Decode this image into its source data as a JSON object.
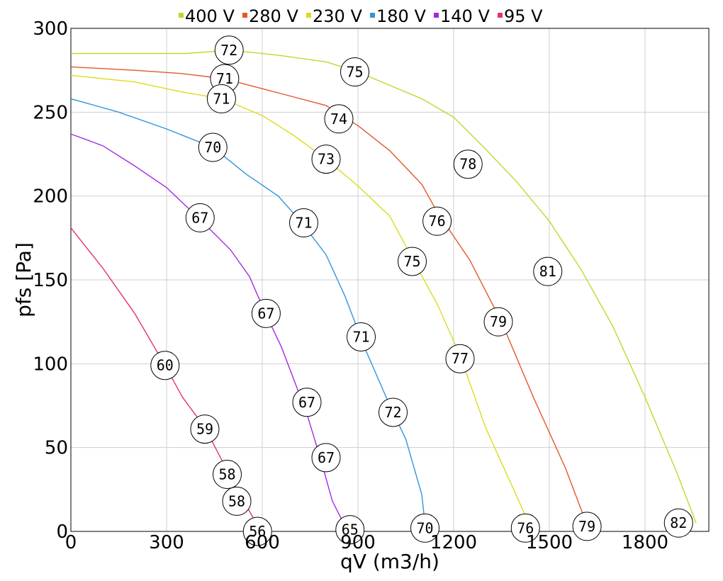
{
  "chart_data": {
    "type": "line",
    "xlabel": "qV (m3/h)",
    "ylabel": "pfs [Pa]",
    "xlim": [
      0,
      2000
    ],
    "ylim": [
      0,
      300
    ],
    "x_ticks": [
      0,
      300,
      600,
      900,
      1200,
      1500,
      1800
    ],
    "x_tick_labels": [
      "0",
      "300",
      "600",
      "900",
      "1200",
      "1500",
      "1800"
    ],
    "y_ticks": [
      0,
      50,
      100,
      150,
      200,
      250,
      300
    ],
    "y_tick_labels": [
      "0",
      "50",
      "100",
      "150",
      "200",
      "250",
      "300"
    ],
    "grid": true,
    "legend_position": "top",
    "series": [
      {
        "name": "400 V",
        "color": "#b9dc2a",
        "points": [
          [
            0,
            285
          ],
          [
            200,
            285
          ],
          [
            360,
            285
          ],
          [
            500,
            287
          ],
          [
            650,
            284
          ],
          [
            800,
            280
          ],
          [
            900,
            274
          ],
          [
            1000,
            266
          ],
          [
            1100,
            258
          ],
          [
            1200,
            247
          ],
          [
            1300,
            228
          ],
          [
            1400,
            208
          ],
          [
            1500,
            185
          ],
          [
            1600,
            156
          ],
          [
            1700,
            122
          ],
          [
            1800,
            80
          ],
          [
            1900,
            35
          ],
          [
            1960,
            5
          ]
        ],
        "markers": [
          {
            "x": 496,
            "y": 287,
            "label": "72"
          },
          {
            "x": 890,
            "y": 274,
            "label": "75"
          },
          {
            "x": 1245,
            "y": 219,
            "label": "78"
          },
          {
            "x": 1495,
            "y": 155,
            "label": "81"
          },
          {
            "x": 1905,
            "y": 5,
            "label": "82"
          }
        ]
      },
      {
        "name": "280 V",
        "color": "#e2582a",
        "points": [
          [
            0,
            277
          ],
          [
            200,
            275
          ],
          [
            350,
            273
          ],
          [
            480,
            270
          ],
          [
            600,
            264
          ],
          [
            700,
            259
          ],
          [
            800,
            254
          ],
          [
            900,
            242
          ],
          [
            1000,
            227
          ],
          [
            1100,
            207
          ],
          [
            1150,
            190
          ],
          [
            1250,
            162
          ],
          [
            1350,
            125
          ],
          [
            1450,
            80
          ],
          [
            1550,
            38
          ],
          [
            1610,
            8
          ]
        ],
        "markers": [
          {
            "x": 482,
            "y": 270,
            "label": "71"
          },
          {
            "x": 840,
            "y": 246,
            "label": "74"
          },
          {
            "x": 1148,
            "y": 185,
            "label": "76"
          },
          {
            "x": 1340,
            "y": 125,
            "label": "79"
          },
          {
            "x": 1618,
            "y": 3,
            "label": "79"
          }
        ]
      },
      {
        "name": "230 V",
        "color": "#dcdc1e",
        "points": [
          [
            0,
            272
          ],
          [
            200,
            268
          ],
          [
            350,
            262
          ],
          [
            475,
            258
          ],
          [
            600,
            248
          ],
          [
            700,
            236
          ],
          [
            800,
            222
          ],
          [
            900,
            206
          ],
          [
            1000,
            188
          ],
          [
            1070,
            163
          ],
          [
            1150,
            135
          ],
          [
            1220,
            105
          ],
          [
            1300,
            62
          ],
          [
            1400,
            20
          ],
          [
            1440,
            3
          ]
        ],
        "markers": [
          {
            "x": 472,
            "y": 258,
            "label": "71"
          },
          {
            "x": 800,
            "y": 222,
            "label": "73"
          },
          {
            "x": 1070,
            "y": 161,
            "label": "75"
          },
          {
            "x": 1220,
            "y": 103,
            "label": "77"
          },
          {
            "x": 1425,
            "y": 2,
            "label": "76"
          }
        ]
      },
      {
        "name": "180 V",
        "color": "#2f96dc",
        "points": [
          [
            0,
            258
          ],
          [
            150,
            250
          ],
          [
            300,
            240
          ],
          [
            445,
            229
          ],
          [
            550,
            213
          ],
          [
            650,
            200
          ],
          [
            720,
            185
          ],
          [
            800,
            165
          ],
          [
            860,
            140
          ],
          [
            920,
            110
          ],
          [
            1000,
            75
          ],
          [
            1050,
            55
          ],
          [
            1100,
            22
          ],
          [
            1110,
            5
          ]
        ],
        "markers": [
          {
            "x": 445,
            "y": 229,
            "label": "70"
          },
          {
            "x": 730,
            "y": 184,
            "label": "71"
          },
          {
            "x": 910,
            "y": 116,
            "label": "71"
          },
          {
            "x": 1010,
            "y": 71,
            "label": "72"
          },
          {
            "x": 1110,
            "y": 2,
            "label": "70"
          }
        ]
      },
      {
        "name": "140 V",
        "color": "#a02ae2",
        "points": [
          [
            0,
            237
          ],
          [
            100,
            230
          ],
          [
            200,
            218
          ],
          [
            300,
            205
          ],
          [
            400,
            187
          ],
          [
            500,
            168
          ],
          [
            560,
            152
          ],
          [
            610,
            130
          ],
          [
            660,
            110
          ],
          [
            700,
            90
          ],
          [
            740,
            70
          ],
          [
            780,
            45
          ],
          [
            820,
            18
          ],
          [
            860,
            3
          ]
        ],
        "markers": [
          {
            "x": 405,
            "y": 187,
            "label": "67"
          },
          {
            "x": 612,
            "y": 130,
            "label": "67"
          },
          {
            "x": 740,
            "y": 77,
            "label": "67"
          },
          {
            "x": 800,
            "y": 44,
            "label": "67"
          },
          {
            "x": 875,
            "y": 1,
            "label": "65"
          }
        ]
      },
      {
        "name": "95 V",
        "color": "#e2346a",
        "points": [
          [
            0,
            181
          ],
          [
            100,
            157
          ],
          [
            200,
            130
          ],
          [
            295,
            99
          ],
          [
            350,
            80
          ],
          [
            420,
            62
          ],
          [
            480,
            40
          ],
          [
            520,
            25
          ],
          [
            560,
            12
          ],
          [
            590,
            2
          ]
        ],
        "markers": [
          {
            "x": 295,
            "y": 99,
            "label": "60"
          },
          {
            "x": 420,
            "y": 61,
            "label": "59"
          },
          {
            "x": 490,
            "y": 34,
            "label": "58"
          },
          {
            "x": 520,
            "y": 18,
            "label": "58"
          },
          {
            "x": 585,
            "y": 0,
            "label": "56"
          }
        ]
      }
    ]
  }
}
